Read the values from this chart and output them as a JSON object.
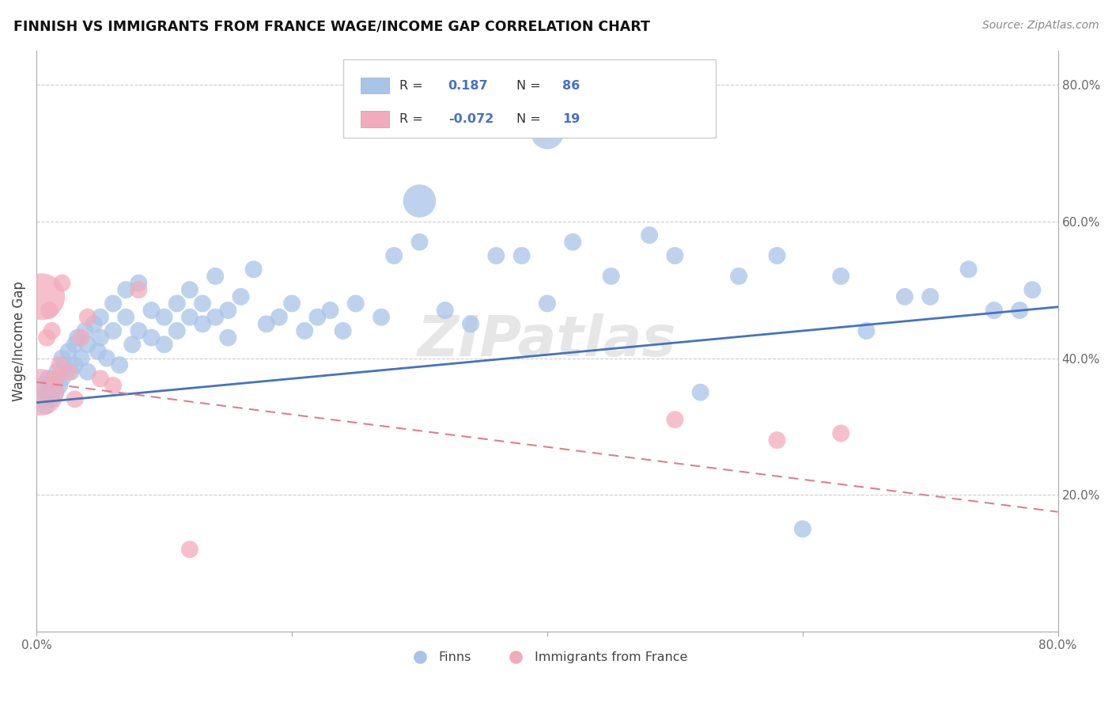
{
  "title": "FINNISH VS IMMIGRANTS FROM FRANCE WAGE/INCOME GAP CORRELATION CHART",
  "source": "Source: ZipAtlas.com",
  "ylabel": "Wage/Income Gap",
  "xlim": [
    0.0,
    0.8
  ],
  "ylim": [
    0.0,
    0.85
  ],
  "y_ticks_right": [
    0.2,
    0.4,
    0.6,
    0.8
  ],
  "y_tick_labels_right": [
    "20.0%",
    "40.0%",
    "60.0%",
    "80.0%"
  ],
  "r_finns": 0.187,
  "r_france": -0.072,
  "n_finns": 86,
  "n_france": 19,
  "watermark": "ZIPatlas",
  "blue_color": "#A8C4E8",
  "pink_color": "#F2ABBC",
  "blue_line_color": "#4472C4",
  "pink_line_color": "#D98090",
  "background_color": "#FFFFFF",
  "finns_x": [
    0.005,
    0.005,
    0.007,
    0.008,
    0.009,
    0.01,
    0.012,
    0.013,
    0.015,
    0.016,
    0.018,
    0.02,
    0.02,
    0.022,
    0.025,
    0.027,
    0.03,
    0.03,
    0.032,
    0.035,
    0.038,
    0.04,
    0.04,
    0.045,
    0.048,
    0.05,
    0.05,
    0.055,
    0.06,
    0.06,
    0.065,
    0.07,
    0.07,
    0.075,
    0.08,
    0.08,
    0.09,
    0.09,
    0.1,
    0.1,
    0.11,
    0.11,
    0.12,
    0.12,
    0.13,
    0.13,
    0.14,
    0.14,
    0.15,
    0.15,
    0.16,
    0.17,
    0.18,
    0.19,
    0.2,
    0.21,
    0.22,
    0.23,
    0.24,
    0.25,
    0.27,
    0.28,
    0.3,
    0.32,
    0.34,
    0.36,
    0.38,
    0.4,
    0.42,
    0.45,
    0.48,
    0.5,
    0.52,
    0.55,
    0.58,
    0.6,
    0.63,
    0.65,
    0.68,
    0.7,
    0.73,
    0.75,
    0.77,
    0.78,
    0.4,
    0.3
  ],
  "finns_y": [
    0.34,
    0.36,
    0.33,
    0.35,
    0.37,
    0.36,
    0.34,
    0.37,
    0.35,
    0.38,
    0.36,
    0.4,
    0.37,
    0.39,
    0.41,
    0.38,
    0.42,
    0.39,
    0.43,
    0.4,
    0.44,
    0.42,
    0.38,
    0.45,
    0.41,
    0.43,
    0.46,
    0.4,
    0.48,
    0.44,
    0.39,
    0.5,
    0.46,
    0.42,
    0.51,
    0.44,
    0.47,
    0.43,
    0.46,
    0.42,
    0.48,
    0.44,
    0.5,
    0.46,
    0.45,
    0.48,
    0.52,
    0.46,
    0.43,
    0.47,
    0.49,
    0.53,
    0.45,
    0.46,
    0.48,
    0.44,
    0.46,
    0.47,
    0.44,
    0.48,
    0.46,
    0.55,
    0.57,
    0.47,
    0.45,
    0.55,
    0.55,
    0.48,
    0.57,
    0.52,
    0.58,
    0.55,
    0.35,
    0.52,
    0.55,
    0.15,
    0.52,
    0.44,
    0.49,
    0.49,
    0.53,
    0.47,
    0.47,
    0.5,
    0.73,
    0.63
  ],
  "finns_size": [
    250,
    250,
    250,
    250,
    250,
    250,
    250,
    250,
    250,
    250,
    250,
    250,
    250,
    250,
    250,
    250,
    250,
    250,
    250,
    250,
    250,
    250,
    250,
    250,
    250,
    250,
    250,
    250,
    250,
    250,
    250,
    250,
    250,
    250,
    250,
    250,
    250,
    250,
    250,
    250,
    250,
    250,
    250,
    250,
    250,
    250,
    250,
    250,
    250,
    250,
    250,
    250,
    250,
    250,
    250,
    250,
    250,
    250,
    250,
    250,
    250,
    250,
    250,
    250,
    250,
    250,
    250,
    250,
    250,
    250,
    250,
    250,
    250,
    250,
    250,
    250,
    250,
    250,
    250,
    250,
    250,
    250,
    250,
    250,
    250,
    250
  ],
  "france_x": [
    0.003,
    0.004,
    0.008,
    0.01,
    0.012,
    0.015,
    0.018,
    0.02,
    0.025,
    0.03,
    0.035,
    0.04,
    0.05,
    0.06,
    0.08,
    0.12,
    0.5,
    0.58,
    0.63
  ],
  "france_y": [
    0.35,
    0.49,
    0.43,
    0.47,
    0.44,
    0.37,
    0.39,
    0.51,
    0.38,
    0.34,
    0.43,
    0.46,
    0.37,
    0.36,
    0.5,
    0.12,
    0.31,
    0.28,
    0.29
  ],
  "france_size": [
    250,
    250,
    250,
    250,
    250,
    250,
    250,
    250,
    250,
    250,
    250,
    250,
    250,
    250,
    250,
    250,
    250,
    250,
    250
  ],
  "france_large_idx": [
    0,
    1
  ],
  "france_large_size": 1800,
  "finns_large_idx": [
    84,
    85
  ],
  "finns_large_size": 900,
  "blue_line_y0": 0.335,
  "blue_line_y1": 0.475,
  "pink_line_y0": 0.365,
  "pink_line_y1": 0.175
}
